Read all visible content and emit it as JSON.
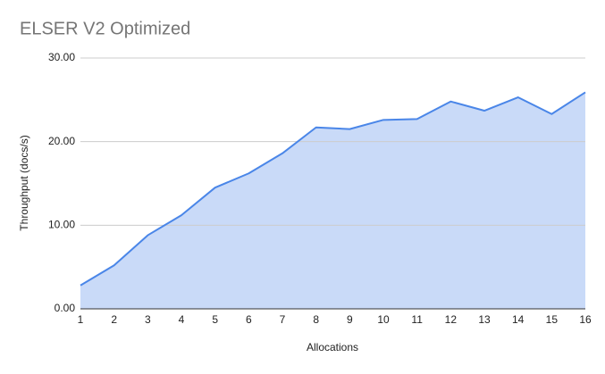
{
  "chart_data": {
    "type": "area",
    "title": "ELSER V2 Optimized",
    "x_label": "Allocations",
    "y_label": "Throughput (docs/s)",
    "x": [
      1,
      2,
      3,
      4,
      5,
      6,
      7,
      8,
      9,
      10,
      11,
      12,
      13,
      14,
      15,
      16
    ],
    "values": [
      2.8,
      5.2,
      8.8,
      11.2,
      14.5,
      16.2,
      18.6,
      21.7,
      21.5,
      22.6,
      22.7,
      24.8,
      23.7,
      25.3,
      23.3,
      25.9
    ],
    "color": "#4a86e8",
    "area_color": "#c9daf8",
    "xlim": [
      1,
      16
    ],
    "xticks": [
      1,
      2,
      3,
      4,
      5,
      6,
      7,
      8,
      9,
      10,
      11,
      12,
      13,
      14,
      15,
      16
    ],
    "ylim": [
      0,
      30
    ],
    "yticks": [
      {
        "value": 0,
        "label": "0.00"
      },
      {
        "value": 10,
        "label": "10.00"
      },
      {
        "value": 20,
        "label": "20.00"
      },
      {
        "value": 30,
        "label": "30.00"
      }
    ],
    "grid": true
  }
}
